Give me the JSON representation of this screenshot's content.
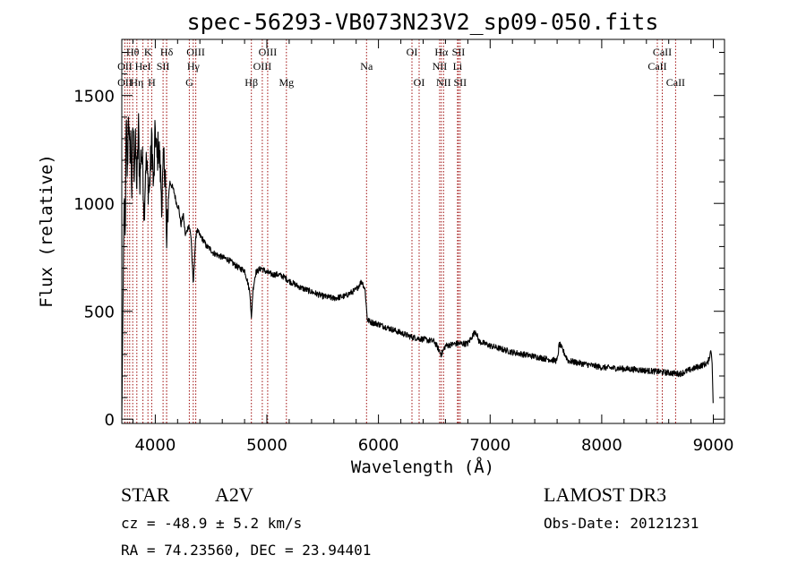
{
  "chart_data": {
    "type": "line",
    "title": "spec-56293-VB073N23V2_sp09-050.fits",
    "xlabel": "Wavelength (Å)",
    "ylabel": "Flux (relative)",
    "xlim": [
      3700,
      9100
    ],
    "ylim": [
      -20,
      1760
    ],
    "xticks": [
      4000,
      5000,
      6000,
      7000,
      8000,
      9000
    ],
    "yticks": [
      0,
      500,
      1000,
      1500
    ],
    "x_minor_step": 200,
    "y_minor_step": 100,
    "line_color": "#000000",
    "marker_color": "#a01010",
    "spectrum": {
      "anchor_wavelengths": [
        3700,
        3720,
        3730,
        3740,
        3750,
        3760,
        3770,
        3780,
        3790,
        3800,
        3810,
        3820,
        3835,
        3850,
        3860,
        3875,
        3890,
        3900,
        3915,
        3930,
        3945,
        3960,
        3970,
        3985,
        4000,
        4015,
        4030,
        4045,
        4060,
        4075,
        4090,
        4101,
        4115,
        4130,
        4150,
        4170,
        4190,
        4210,
        4230,
        4250,
        4270,
        4300,
        4320,
        4340,
        4355,
        4370,
        4400,
        4430,
        4460,
        4490,
        4520,
        4560,
        4600,
        4650,
        4700,
        4750,
        4800,
        4830,
        4850,
        4861,
        4875,
        4900,
        4950,
        5000,
        5050,
        5100,
        5150,
        5200,
        5300,
        5400,
        5500,
        5600,
        5700,
        5800,
        5850,
        5880,
        5900,
        5930,
        6000,
        6100,
        6200,
        6300,
        6400,
        6500,
        6563,
        6600,
        6700,
        6800,
        6870,
        6900,
        7000,
        7200,
        7400,
        7600,
        7620,
        7700,
        8000,
        8300,
        8500,
        8700,
        8800,
        8950,
        8980,
        8990,
        9000
      ],
      "anchor_flux": [
        0,
        1000,
        820,
        1380,
        1100,
        1450,
        1200,
        1320,
        1050,
        1400,
        1150,
        1300,
        1080,
        1350,
        1100,
        1250,
        1150,
        950,
        1200,
        1120,
        1050,
        1200,
        1300,
        1050,
        1350,
        1200,
        1280,
        1150,
        1000,
        1200,
        1150,
        780,
        1000,
        1100,
        1080,
        1050,
        1000,
        980,
        900,
        950,
        850,
        900,
        850,
        620,
        780,
        880,
        850,
        830,
        800,
        790,
        770,
        760,
        750,
        740,
        720,
        700,
        690,
        630,
        580,
        460,
        600,
        680,
        700,
        680,
        670,
        670,
        660,
        640,
        610,
        590,
        570,
        560,
        570,
        600,
        640,
        600,
        460,
        450,
        440,
        420,
        400,
        380,
        370,
        360,
        300,
        340,
        350,
        350,
        410,
        360,
        340,
        310,
        290,
        270,
        350,
        270,
        240,
        230,
        220,
        210,
        230,
        260,
        320,
        250,
        30
      ],
      "noise_amplitude": 14,
      "bright_noise_amplitude": 95
    },
    "lines_row1": [
      {
        "label": "Hθ",
        "wavelength": 3798
      },
      {
        "label": "K",
        "wavelength": 3934
      },
      {
        "label": "Hδ",
        "wavelength": 4102
      },
      {
        "label": "OIII",
        "wavelength": 4363
      },
      {
        "label": "OIII",
        "wavelength": 5007
      },
      {
        "label": "OI",
        "wavelength": 6300
      },
      {
        "label": "Hα",
        "wavelength": 6563
      },
      {
        "label": "SII",
        "wavelength": 6716
      },
      {
        "label": "CaII",
        "wavelength": 8542
      }
    ],
    "lines_row2": [
      {
        "label": "OII",
        "wavelength": 3727
      },
      {
        "label": "HeI",
        "wavelength": 3889
      },
      {
        "label": "SII",
        "wavelength": 4070
      },
      {
        "label": "Hγ",
        "wavelength": 4340
      },
      {
        "label": "OIII",
        "wavelength": 4959
      },
      {
        "label": "Na",
        "wavelength": 5893
      },
      {
        "label": "NII",
        "wavelength": 6548
      },
      {
        "label": "Li",
        "wavelength": 6708
      },
      {
        "label": "CaII",
        "wavelength": 8498
      }
    ],
    "lines_row3": [
      {
        "label": "OII",
        "wavelength": 3727
      },
      {
        "label": "Hη",
        "wavelength": 3835
      },
      {
        "label": "H",
        "wavelength": 3968
      },
      {
        "label": "G",
        "wavelength": 4305
      },
      {
        "label": "Hβ",
        "wavelength": 4861
      },
      {
        "label": "Mg",
        "wavelength": 5175
      },
      {
        "label": "OI",
        "wavelength": 6364
      },
      {
        "label": "NII",
        "wavelength": 6583
      },
      {
        "label": "SII",
        "wavelength": 6731
      },
      {
        "label": "CaII",
        "wavelength": 8662
      }
    ],
    "extra_marker_wavelengths": [
      3750,
      3771,
      3889,
      4101,
      4861,
      4959,
      6548,
      6563,
      6583,
      6716,
      6731,
      8498,
      8542
    ]
  },
  "info": {
    "object_class": "STAR",
    "subclass": "A2V",
    "survey": "LAMOST DR3",
    "redshift": "cz = -48.9 ± 5.2 km/s",
    "obs_date": "Obs-Date: 20121231",
    "coords": "RA =  74.23560, DEC =  23.94401"
  }
}
